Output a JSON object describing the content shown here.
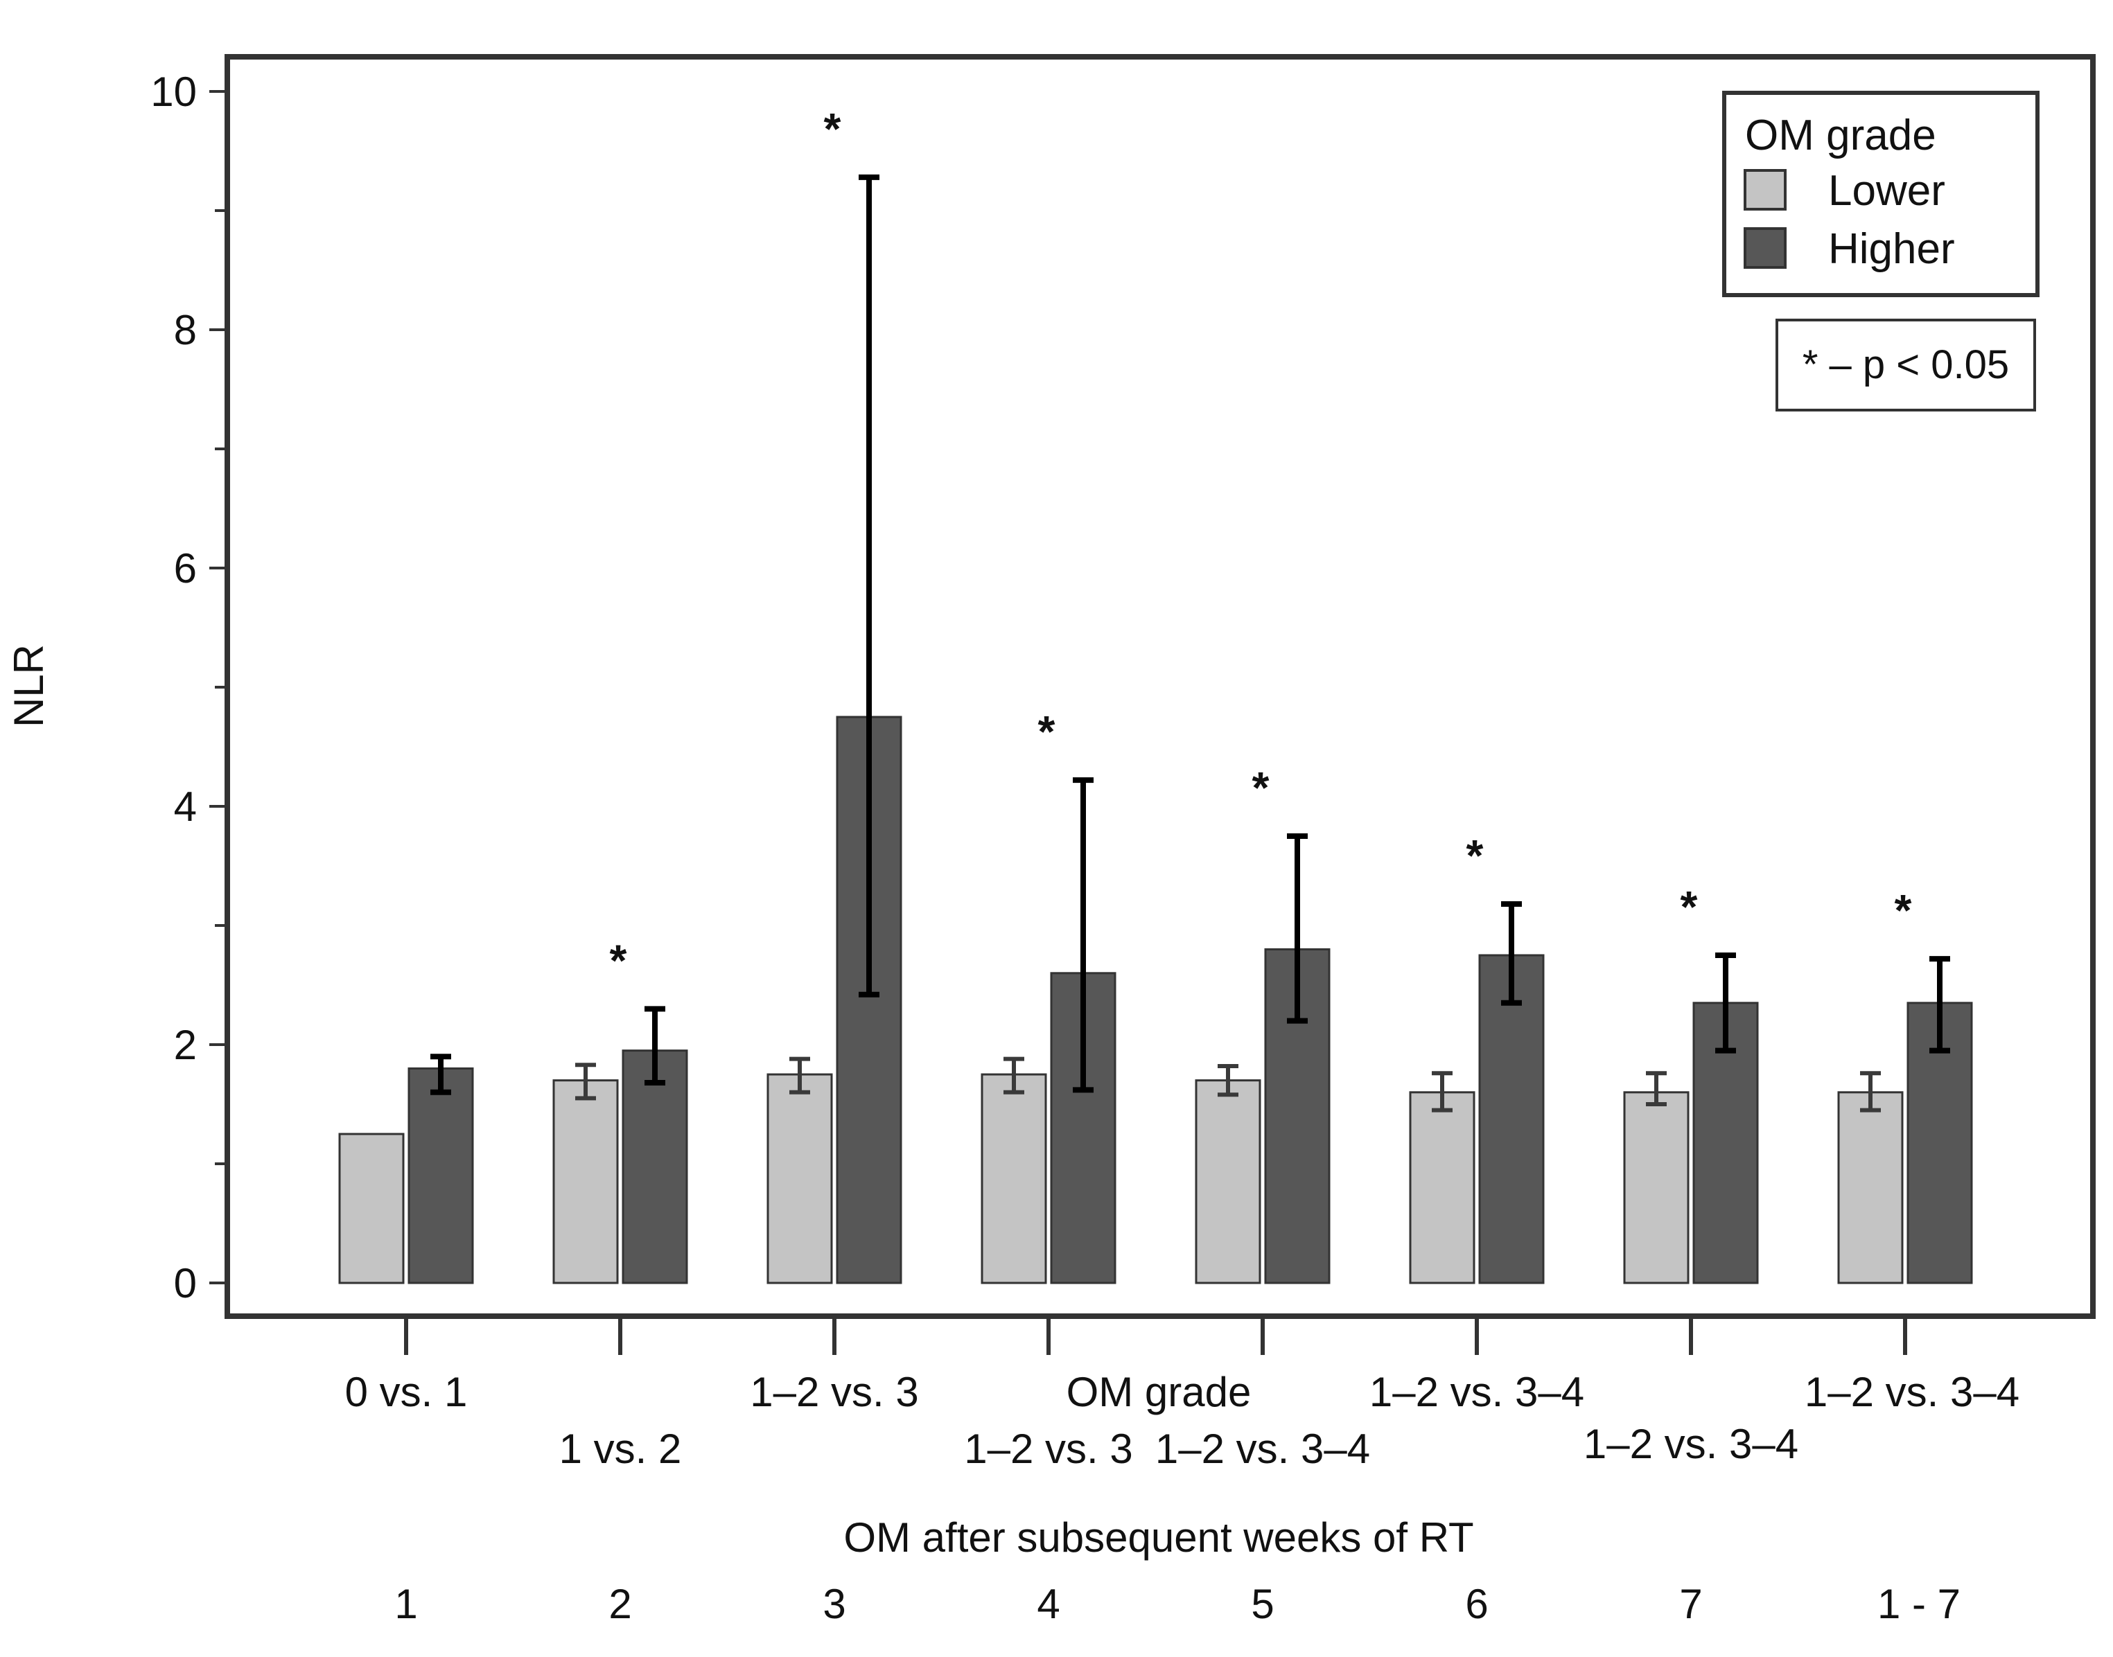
{
  "chart_data": {
    "type": "bar",
    "ylabel": "NLR",
    "ylim": [
      0,
      10
    ],
    "yticks": [
      0,
      2,
      4,
      6,
      8,
      10
    ],
    "x_title": "OM after subsequent weeks of RT",
    "x_extra_label": "OM grade",
    "weeks": [
      "1",
      "2",
      "3",
      "4",
      "5",
      "6",
      "7",
      "1 - 7"
    ],
    "comparisons": [
      "0 vs. 1",
      "1 vs. 2",
      "1–2 vs. 3",
      "1–2 vs. 3",
      "1–2 vs. 3–4",
      "1–2 vs. 3–4",
      "1–2 vs. 3–4",
      "1–2 vs. 3–4"
    ],
    "legend": {
      "title": "OM grade",
      "position": "top-right"
    },
    "note": "* – p < 0.05",
    "significance_marker": "*",
    "significant": [
      false,
      true,
      true,
      true,
      true,
      true,
      true,
      true
    ],
    "series": [
      {
        "name": "Lower",
        "color": "#c4c4c4",
        "values": [
          1.25,
          1.7,
          1.75,
          1.75,
          1.7,
          1.6,
          1.6,
          1.6
        ],
        "err_low": [
          null,
          1.55,
          1.6,
          1.6,
          1.58,
          1.45,
          1.5,
          1.45
        ],
        "err_high": [
          null,
          1.83,
          1.88,
          1.88,
          1.82,
          1.76,
          1.76,
          1.76
        ]
      },
      {
        "name": "Higher",
        "color": "#575757",
        "values": [
          1.8,
          1.95,
          4.75,
          2.6,
          2.8,
          2.75,
          2.35,
          2.35
        ],
        "err_low": [
          1.6,
          1.68,
          2.42,
          1.62,
          2.2,
          2.35,
          1.95,
          1.95
        ],
        "err_high": [
          1.9,
          2.3,
          9.28,
          4.22,
          3.75,
          3.18,
          2.75,
          2.72
        ]
      }
    ]
  }
}
